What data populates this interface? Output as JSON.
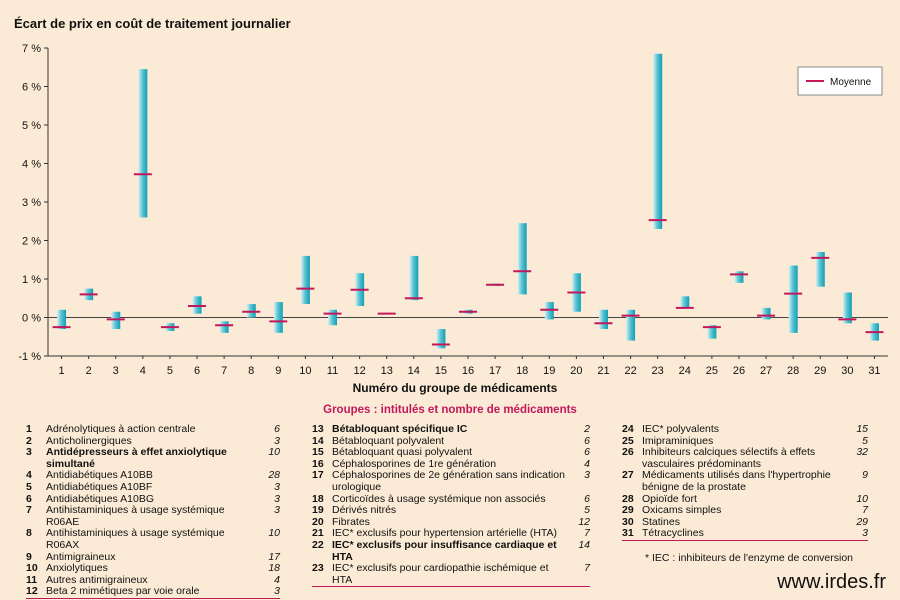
{
  "title": "Écart de prix en coût de traitement journalier",
  "xlabel": "Numéro du groupe de médicaments",
  "legend_label": "Moyenne",
  "groups_title": "Groupes : intitulés et nombre de médicaments",
  "footnote": "* IEC : inhibiteurs de l'enzyme de conversion",
  "website": "www.irdes.fr",
  "colors": {
    "background": "#fbebd6",
    "bar": "#17a9bd",
    "mean": "#c2185b"
  },
  "chart_data": {
    "type": "range-bar",
    "ylim": [
      -1,
      7
    ],
    "yticks": [
      "-1 %",
      "0 %",
      "1 %",
      "2 %",
      "3 %",
      "4 %",
      "5 %",
      "6 %",
      "7 %"
    ],
    "ytick_values": [
      -1,
      0,
      1,
      2,
      3,
      4,
      5,
      6,
      7
    ],
    "categories": [
      "1",
      "2",
      "3",
      "4",
      "5",
      "6",
      "7",
      "8",
      "9",
      "10",
      "11",
      "12",
      "13",
      "14",
      "15",
      "16",
      "17",
      "18",
      "19",
      "20",
      "21",
      "22",
      "23",
      "24",
      "25",
      "26",
      "27",
      "28",
      "29",
      "30",
      "31"
    ],
    "low": [
      -0.3,
      0.45,
      -0.3,
      2.6,
      -0.35,
      0.1,
      -0.4,
      0.0,
      -0.4,
      0.35,
      -0.2,
      0.3,
      0.08,
      0.45,
      -0.8,
      0.1,
      0.82,
      0.6,
      -0.05,
      0.15,
      -0.3,
      -0.6,
      2.3,
      0.25,
      -0.55,
      0.9,
      -0.05,
      -0.4,
      0.8,
      -0.15,
      -0.6
    ],
    "high": [
      0.2,
      0.75,
      0.15,
      6.45,
      -0.15,
      0.55,
      -0.1,
      0.35,
      0.4,
      1.6,
      0.2,
      1.15,
      0.12,
      1.6,
      -0.3,
      0.2,
      0.88,
      2.45,
      0.4,
      1.15,
      0.2,
      0.2,
      6.85,
      0.55,
      -0.2,
      1.2,
      0.25,
      1.35,
      1.7,
      0.65,
      -0.15
    ],
    "mean": [
      -0.25,
      0.6,
      -0.05,
      3.72,
      -0.25,
      0.3,
      -0.2,
      0.15,
      -0.1,
      0.75,
      0.1,
      0.72,
      0.1,
      0.5,
      -0.7,
      0.15,
      0.85,
      1.2,
      0.2,
      0.65,
      -0.15,
      0.05,
      2.53,
      0.25,
      -0.25,
      1.12,
      0.05,
      0.62,
      1.55,
      -0.05,
      -0.38
    ]
  },
  "columns": [
    [
      {
        "num": "1",
        "label": "Adrénolytiques à action centrale",
        "count": "6"
      },
      {
        "num": "2",
        "label": "Anticholinergiques",
        "count": "3"
      },
      {
        "num": "3",
        "label": "Antidépresseurs à effet anxiolytique simultané",
        "count": "10",
        "bold": true
      },
      {
        "num": "4",
        "label": "Antidiabétiques A10BB",
        "count": "28"
      },
      {
        "num": "5",
        "label": "Antidiabétiques A10BF",
        "count": "3"
      },
      {
        "num": "6",
        "label": "Antidiabétiques A10BG",
        "count": "3"
      },
      {
        "num": "7",
        "label": "Antihistaminiques à usage systémique R06AE",
        "count": "3"
      },
      {
        "num": "8",
        "label": "Antihistaminiques à usage systémique R06AX",
        "count": "10"
      },
      {
        "num": "9",
        "label": "Antimigraineux",
        "count": "17"
      },
      {
        "num": "10",
        "label": "Anxiolytiques",
        "count": "18"
      },
      {
        "num": "11",
        "label": "Autres antimigraineux",
        "count": "4"
      },
      {
        "num": "12",
        "label": "Beta 2 mimétiques par voie orale",
        "count": "3",
        "under": true
      }
    ],
    [
      {
        "num": "13",
        "label": "Bétabloquant spécifique IC",
        "count": "2",
        "bold": true
      },
      {
        "num": "14",
        "label": "Bétabloquant polyvalent",
        "count": "6"
      },
      {
        "num": "15",
        "label": "Bétabloquant quasi polyvalent",
        "count": "6"
      },
      {
        "num": "16",
        "label": "Céphalosporines de 1re génération",
        "count": "4"
      },
      {
        "num": "17",
        "label": "Céphalosporines de 2e génération sans indication urologique",
        "count": "3"
      },
      {
        "num": "18",
        "label": "Corticoïdes à usage systémique non associés",
        "count": "6"
      },
      {
        "num": "19",
        "label": "Dérivés nitrés",
        "count": "5"
      },
      {
        "num": "20",
        "label": "Fibrates",
        "count": "12"
      },
      {
        "num": "21",
        "label": "IEC* exclusifs pour hypertension artérielle (HTA)",
        "count": "7"
      },
      {
        "num": "22",
        "label": "IEC* exclusifs pour insuffisance cardiaque et HTA",
        "count": "14",
        "bold": true
      },
      {
        "num": "23",
        "label": "IEC* exclusifs pour cardiopathie ischémique et HTA",
        "count": "7",
        "under": true
      }
    ],
    [
      {
        "num": "24",
        "label": "IEC* polyvalents",
        "count": "15"
      },
      {
        "num": "25",
        "label": "Imipraminiques",
        "count": "5"
      },
      {
        "num": "26",
        "label": "Inhibiteurs calciques sélectifs à effets vasculaires prédominants",
        "count": "32"
      },
      {
        "num": "27",
        "label": "Médicaments utilisés dans l'hypertrophie bénigne de la prostate",
        "count": "9"
      },
      {
        "num": "28",
        "label": "Opioïde fort",
        "count": "10"
      },
      {
        "num": "29",
        "label": "Oxicams simples",
        "count": "7"
      },
      {
        "num": "30",
        "label": "Statines",
        "count": "29"
      },
      {
        "num": "31",
        "label": "Tétracyclines",
        "count": "3",
        "under": true
      }
    ]
  ]
}
